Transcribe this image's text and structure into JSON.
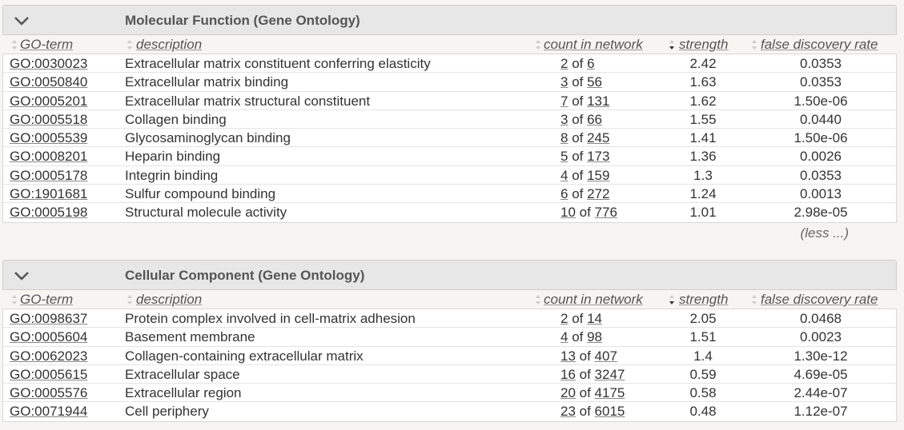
{
  "columns": {
    "term": "GO-term",
    "description": "description",
    "count": "count in network",
    "strength": "strength",
    "fdr": "false discovery rate"
  },
  "molecular_function": {
    "title": "Molecular Function (Gene Ontology)",
    "less_label": "(less ...)",
    "rows": [
      {
        "term": "GO:0030023",
        "description": "Extracellular matrix constituent conferring elasticity",
        "count": "2",
        "of": " of ",
        "total": "6",
        "strength": "2.42",
        "fdr": "0.0353"
      },
      {
        "term": "GO:0050840",
        "description": "Extracellular matrix binding",
        "count": "3",
        "of": " of ",
        "total": "56",
        "strength": "1.63",
        "fdr": "0.0353"
      },
      {
        "term": "GO:0005201",
        "description": "Extracellular matrix structural constituent",
        "count": "7",
        "of": " of ",
        "total": "131",
        "strength": "1.62",
        "fdr": "1.50e-06"
      },
      {
        "term": "GO:0005518",
        "description": "Collagen binding",
        "count": "3",
        "of": " of ",
        "total": "66",
        "strength": "1.55",
        "fdr": "0.0440"
      },
      {
        "term": "GO:0005539",
        "description": "Glycosaminoglycan binding",
        "count": "8",
        "of": " of ",
        "total": "245",
        "strength": "1.41",
        "fdr": "1.50e-06"
      },
      {
        "term": "GO:0008201",
        "description": "Heparin binding",
        "count": "5",
        "of": " of ",
        "total": "173",
        "strength": "1.36",
        "fdr": "0.0026"
      },
      {
        "term": "GO:0005178",
        "description": "Integrin binding",
        "count": "4",
        "of": " of ",
        "total": "159",
        "strength": "1.3",
        "fdr": "0.0353"
      },
      {
        "term": "GO:1901681",
        "description": "Sulfur compound binding",
        "count": "6",
        "of": " of ",
        "total": "272",
        "strength": "1.24",
        "fdr": "0.0013"
      },
      {
        "term": "GO:0005198",
        "description": "Structural molecule activity",
        "count": "10",
        "of": " of ",
        "total": "776",
        "strength": "1.01",
        "fdr": "2.98e-05"
      }
    ]
  },
  "cellular_component": {
    "title": "Cellular Component (Gene Ontology)",
    "rows": [
      {
        "term": "GO:0098637",
        "description": "Protein complex involved in cell-matrix adhesion",
        "count": "2",
        "of": " of ",
        "total": "14",
        "strength": "2.05",
        "fdr": "0.0468"
      },
      {
        "term": "GO:0005604",
        "description": "Basement membrane",
        "count": "4",
        "of": " of ",
        "total": "98",
        "strength": "1.51",
        "fdr": "0.0023"
      },
      {
        "term": "GO:0062023",
        "description": "Collagen-containing extracellular matrix",
        "count": "13",
        "of": " of ",
        "total": "407",
        "strength": "1.4",
        "fdr": "1.30e-12"
      },
      {
        "term": "GO:0005615",
        "description": "Extracellular space",
        "count": "16",
        "of": " of ",
        "total": "3247",
        "strength": "0.59",
        "fdr": "4.69e-05"
      },
      {
        "term": "GO:0005576",
        "description": "Extracellular region",
        "count": "20",
        "of": " of ",
        "total": "4175",
        "strength": "0.58",
        "fdr": "2.44e-07"
      },
      {
        "term": "GO:0071944",
        "description": "Cell periphery",
        "count": "23",
        "of": " of ",
        "total": "6015",
        "strength": "0.48",
        "fdr": "1.12e-07"
      }
    ]
  }
}
